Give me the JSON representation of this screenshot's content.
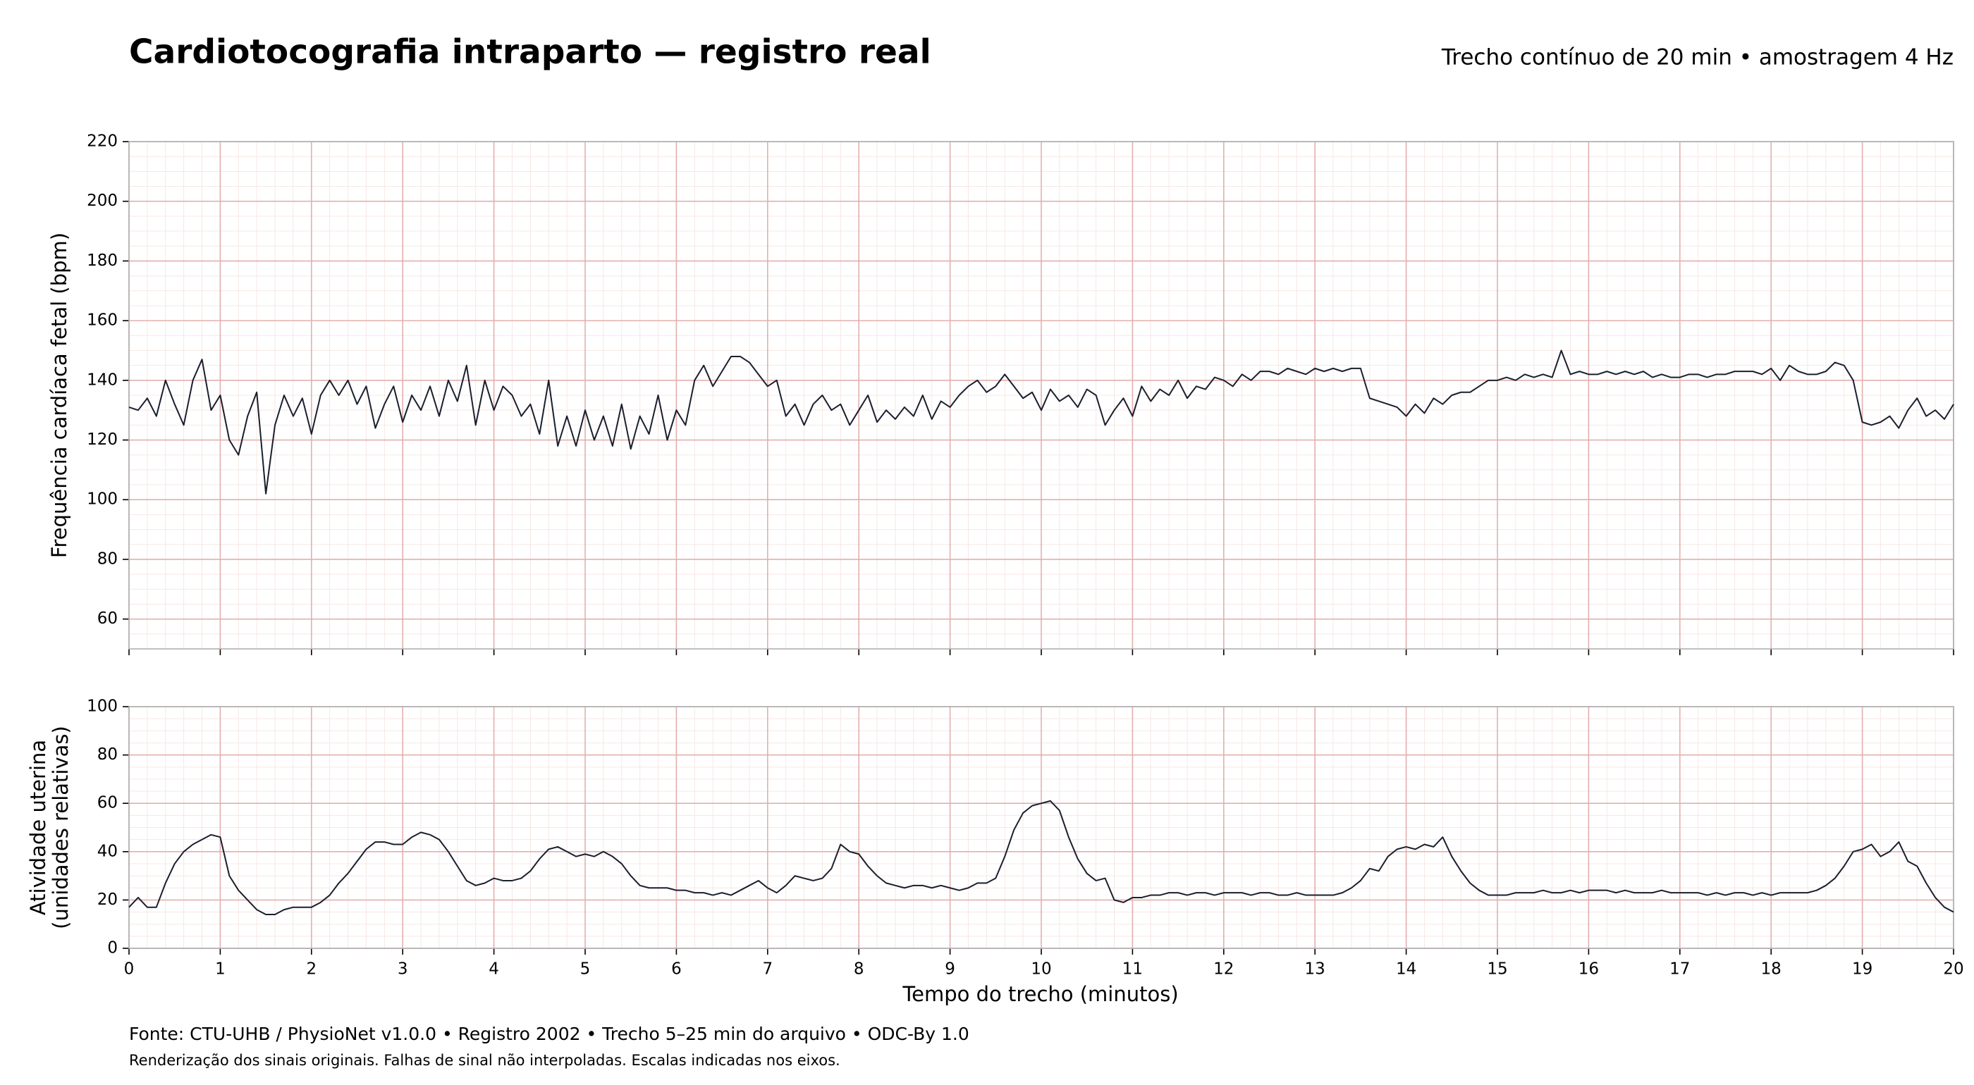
{
  "chart_data": [
    {
      "type": "line",
      "title": "Cardiotocografia intraparto — registro real",
      "subtitle": "Trecho contínuo de 20 min • amostragem 4 Hz",
      "ylabel": [
        "Frequência cardíaca fetal (bpm)"
      ],
      "xlim": [
        0,
        20
      ],
      "xticks": [
        0,
        1,
        2,
        3,
        4,
        5,
        6,
        7,
        8,
        9,
        10,
        11,
        12,
        13,
        14,
        15,
        16,
        17,
        18,
        19,
        20
      ],
      "xtick_labels": false,
      "ylim": [
        50,
        220
      ],
      "yticks": [
        60,
        80,
        100,
        120,
        140,
        160,
        180,
        200,
        220
      ],
      "grid": true,
      "minor_grid": {
        "x": 0.2,
        "y": 5
      },
      "x": [
        0,
        0.1,
        0.2,
        0.3,
        0.4,
        0.5,
        0.6,
        0.7,
        0.8,
        0.9,
        1,
        1.1,
        1.2,
        1.3,
        1.4,
        1.5,
        1.6,
        1.7,
        1.8,
        1.9,
        2,
        2.1,
        2.2,
        2.3,
        2.4,
        2.5,
        2.6,
        2.7,
        2.8,
        2.9,
        3,
        3.1,
        3.2,
        3.3,
        3.4,
        3.5,
        3.6,
        3.7,
        3.8,
        3.9,
        4,
        4.1,
        4.2,
        4.3,
        4.4,
        4.5,
        4.6,
        4.7,
        4.8,
        4.9,
        5,
        5.1,
        5.2,
        5.3,
        5.4,
        5.5,
        5.6,
        5.7,
        5.8,
        5.9,
        6,
        6.1,
        6.2,
        6.3,
        6.4,
        6.5,
        6.6,
        6.7,
        6.8,
        6.9,
        7,
        7.1,
        7.2,
        7.3,
        7.4,
        7.5,
        7.6,
        7.7,
        7.8,
        7.9,
        8,
        8.1,
        8.2,
        8.3,
        8.4,
        8.5,
        8.6,
        8.7,
        8.8,
        8.9,
        9,
        9.1,
        9.2,
        9.3,
        9.4,
        9.5,
        9.6,
        9.7,
        9.8,
        9.9,
        10,
        10.1,
        10.2,
        10.3,
        10.4,
        10.5,
        10.6,
        10.7,
        10.8,
        10.9,
        11,
        11.1,
        11.2,
        11.3,
        11.4,
        11.5,
        11.6,
        11.7,
        11.8,
        11.9,
        12,
        12.1,
        12.2,
        12.3,
        12.4,
        12.5,
        12.6,
        12.7,
        12.8,
        12.9,
        13,
        13.1,
        13.2,
        13.3,
        13.4,
        13.5,
        13.6,
        13.7,
        13.8,
        13.9,
        14,
        14.1,
        14.2,
        14.3,
        14.4,
        14.5,
        14.6,
        14.7,
        14.8,
        14.9,
        15,
        15.1,
        15.2,
        15.3,
        15.4,
        15.5,
        15.6,
        15.7,
        15.8,
        15.9,
        16,
        16.1,
        16.2,
        16.3,
        16.4,
        16.5,
        16.6,
        16.7,
        16.8,
        16.9,
        17,
        17.1,
        17.2,
        17.3,
        17.4,
        17.5,
        17.6,
        17.7,
        17.8,
        17.9,
        18,
        18.1,
        18.2,
        18.3,
        18.4,
        18.5,
        18.6,
        18.7,
        18.8,
        18.9,
        19,
        19.1,
        19.2,
        19.3,
        19.4,
        19.5,
        19.6,
        19.7,
        19.8,
        19.9,
        20
      ],
      "series": [
        {
          "color": "#1a1f2e",
          "values": [
            131,
            130,
            134,
            128,
            140,
            132,
            125,
            140,
            147,
            130,
            135,
            120,
            115,
            128,
            136,
            102,
            125,
            135,
            128,
            134,
            122,
            135,
            140,
            135,
            140,
            132,
            138,
            124,
            132,
            138,
            126,
            135,
            130,
            138,
            128,
            140,
            133,
            145,
            125,
            140,
            130,
            138,
            135,
            128,
            132,
            122,
            140,
            118,
            128,
            118,
            130,
            120,
            128,
            118,
            132,
            117,
            128,
            122,
            135,
            120,
            130,
            125,
            140,
            145,
            138,
            143,
            148,
            148,
            146,
            142,
            138,
            140,
            128,
            132,
            125,
            132,
            135,
            130,
            132,
            125,
            130,
            135,
            126,
            130,
            127,
            131,
            128,
            135,
            127,
            133,
            131,
            135,
            138,
            140,
            136,
            138,
            142,
            138,
            134,
            136,
            130,
            137,
            133,
            135,
            131,
            137,
            135,
            125,
            130,
            134,
            128,
            138,
            133,
            137,
            135,
            140,
            134,
            138,
            137,
            141,
            140,
            138,
            142,
            140,
            143,
            143,
            142,
            144,
            143,
            142,
            144,
            143,
            144,
            143,
            144,
            144,
            134,
            133,
            132,
            131,
            128,
            132,
            129,
            134,
            132,
            135,
            136,
            136,
            138,
            140,
            140,
            141,
            140,
            142,
            141,
            142,
            141,
            150,
            142,
            143,
            142,
            142,
            143,
            142,
            143,
            142,
            143,
            141,
            142,
            141,
            141,
            142,
            142,
            141,
            142,
            142,
            143,
            143,
            143,
            142,
            144,
            140,
            145,
            143,
            142,
            142,
            143,
            146,
            145,
            140,
            126,
            125,
            126,
            128,
            124,
            130,
            134,
            128,
            130,
            127,
            132
          ]
        }
      ]
    },
    {
      "type": "line",
      "ylabel": [
        "Atividade uterina",
        "(unidades relativas)"
      ],
      "xlabel": "Tempo do trecho (minutos)",
      "xlim": [
        0,
        20
      ],
      "xticks": [
        0,
        1,
        2,
        3,
        4,
        5,
        6,
        7,
        8,
        9,
        10,
        11,
        12,
        13,
        14,
        15,
        16,
        17,
        18,
        19,
        20
      ],
      "xtick_labels": true,
      "ylim": [
        0,
        100
      ],
      "yticks": [
        0,
        20,
        40,
        60,
        80,
        100
      ],
      "grid": true,
      "minor_grid": {
        "x": 0.2,
        "y": 5
      },
      "x": [
        0,
        0.1,
        0.2,
        0.3,
        0.4,
        0.5,
        0.6,
        0.7,
        0.8,
        0.9,
        1,
        1.1,
        1.2,
        1.3,
        1.4,
        1.5,
        1.6,
        1.7,
        1.8,
        1.9,
        2,
        2.1,
        2.2,
        2.3,
        2.4,
        2.5,
        2.6,
        2.7,
        2.8,
        2.9,
        3,
        3.1,
        3.2,
        3.3,
        3.4,
        3.5,
        3.6,
        3.7,
        3.8,
        3.9,
        4,
        4.1,
        4.2,
        4.3,
        4.4,
        4.5,
        4.6,
        4.7,
        4.8,
        4.9,
        5,
        5.1,
        5.2,
        5.3,
        5.4,
        5.5,
        5.6,
        5.7,
        5.8,
        5.9,
        6,
        6.1,
        6.2,
        6.3,
        6.4,
        6.5,
        6.6,
        6.7,
        6.8,
        6.9,
        7,
        7.1,
        7.2,
        7.3,
        7.4,
        7.5,
        7.6,
        7.7,
        7.8,
        7.9,
        8,
        8.1,
        8.2,
        8.3,
        8.4,
        8.5,
        8.6,
        8.7,
        8.8,
        8.9,
        9,
        9.1,
        9.2,
        9.3,
        9.4,
        9.5,
        9.6,
        9.7,
        9.8,
        9.9,
        10,
        10.1,
        10.2,
        10.3,
        10.4,
        10.5,
        10.6,
        10.7,
        10.8,
        10.9,
        11,
        11.1,
        11.2,
        11.3,
        11.4,
        11.5,
        11.6,
        11.7,
        11.8,
        11.9,
        12,
        12.1,
        12.2,
        12.3,
        12.4,
        12.5,
        12.6,
        12.7,
        12.8,
        12.9,
        13,
        13.1,
        13.2,
        13.3,
        13.4,
        13.5,
        13.6,
        13.7,
        13.8,
        13.9,
        14,
        14.1,
        14.2,
        14.3,
        14.4,
        14.5,
        14.6,
        14.7,
        14.8,
        14.9,
        15,
        15.1,
        15.2,
        15.3,
        15.4,
        15.5,
        15.6,
        15.7,
        15.8,
        15.9,
        16,
        16.1,
        16.2,
        16.3,
        16.4,
        16.5,
        16.6,
        16.7,
        16.8,
        16.9,
        17,
        17.1,
        17.2,
        17.3,
        17.4,
        17.5,
        17.6,
        17.7,
        17.8,
        17.9,
        18,
        18.1,
        18.2,
        18.3,
        18.4,
        18.5,
        18.6,
        18.7,
        18.8,
        18.9,
        19,
        19.1,
        19.2,
        19.3,
        19.4,
        19.5,
        19.6,
        19.7,
        19.8,
        19.9,
        20
      ],
      "series": [
        {
          "color": "#1a1f2e",
          "values": [
            17,
            21,
            17,
            17,
            27,
            35,
            40,
            43,
            45,
            47,
            46,
            30,
            24,
            20,
            16,
            14,
            14,
            16,
            17,
            17,
            17,
            19,
            22,
            27,
            31,
            36,
            41,
            44,
            44,
            43,
            43,
            46,
            48,
            47,
            45,
            40,
            34,
            28,
            26,
            27,
            29,
            28,
            28,
            29,
            32,
            37,
            41,
            42,
            40,
            38,
            39,
            38,
            40,
            38,
            35,
            30,
            26,
            25,
            25,
            25,
            24,
            24,
            23,
            23,
            22,
            23,
            22,
            24,
            26,
            28,
            25,
            23,
            26,
            30,
            29,
            28,
            29,
            33,
            43,
            40,
            39,
            34,
            30,
            27,
            26,
            25,
            26,
            26,
            25,
            26,
            25,
            24,
            25,
            27,
            27,
            29,
            38,
            49,
            56,
            59,
            60,
            61,
            57,
            46,
            37,
            31,
            28,
            29,
            20,
            19,
            21,
            21,
            22,
            22,
            23,
            23,
            22,
            23,
            23,
            22,
            23,
            23,
            23,
            22,
            23,
            23,
            22,
            22,
            23,
            22,
            22,
            22,
            22,
            23,
            25,
            28,
            33,
            32,
            38,
            41,
            42,
            41,
            43,
            42,
            46,
            38,
            32,
            27,
            24,
            22,
            22,
            22,
            23,
            23,
            23,
            24,
            23,
            23,
            24,
            23,
            24,
            24,
            24,
            23,
            24,
            23,
            23,
            23,
            24,
            23,
            23,
            23,
            23,
            22,
            23,
            22,
            23,
            23,
            22,
            23,
            22,
            23,
            23,
            23,
            23,
            24,
            26,
            29,
            34,
            40,
            41,
            43,
            38,
            40,
            44,
            36,
            34,
            27,
            21,
            17,
            15
          ]
        }
      ]
    }
  ],
  "notes": [
    "Fonte: CTU-UHB / PhysioNet v1.0.0 • Registro 2002 • Trecho 5–25 min do arquivo • ODC-By 1.0",
    "Renderização dos sinais originais. Falhas de sinal não interpoladas. Escalas indicadas nos eixos."
  ]
}
